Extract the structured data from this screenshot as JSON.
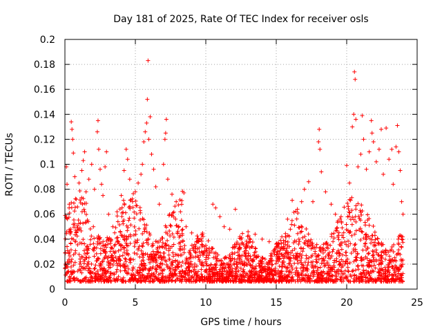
{
  "chart_data": {
    "type": "scatter",
    "title": "Day 181 of 2025, Rate Of TEC Index for receiver osls",
    "xlabel": "GPS time / hours",
    "ylabel": "ROTI / TECUs",
    "xlim": [
      0,
      25
    ],
    "ylim": [
      0,
      0.2
    ],
    "xticks": [
      0,
      5,
      10,
      15,
      20,
      25
    ],
    "xtick_labels": [
      "0",
      "5",
      "10",
      "15",
      "20",
      "25"
    ],
    "yticks": [
      0,
      0.02,
      0.04,
      0.06,
      0.08,
      0.1,
      0.12,
      0.14,
      0.16,
      0.18,
      0.2
    ],
    "ytick_labels": [
      "0",
      "0.02",
      "0.04",
      "0.06",
      "0.08",
      "0.1",
      "0.12",
      "0.14",
      "0.16",
      "0.18",
      "0.2"
    ],
    "grid": true,
    "marker": "plus",
    "color": "#ff0000",
    "series": [
      {
        "points": [
          [
            0.05,
            0.02
          ],
          [
            0.1,
            0.098
          ],
          [
            0.15,
            0.084
          ],
          [
            0.3,
            0.065
          ],
          [
            0.45,
            0.134
          ],
          [
            0.5,
            0.128
          ],
          [
            0.55,
            0.12
          ],
          [
            0.6,
            0.109
          ],
          [
            0.7,
            0.09
          ],
          [
            0.8,
            0.072
          ],
          [
            1.0,
            0.085
          ],
          [
            1.2,
            0.095
          ],
          [
            1.3,
            0.103
          ],
          [
            1.4,
            0.11
          ],
          [
            1.5,
            0.078
          ],
          [
            1.7,
            0.088
          ],
          [
            1.9,
            0.1
          ],
          [
            2.1,
            0.08
          ],
          [
            2.3,
            0.126
          ],
          [
            2.35,
            0.135
          ],
          [
            2.4,
            0.112
          ],
          [
            2.5,
            0.096
          ],
          [
            2.6,
            0.084
          ],
          [
            2.7,
            0.075
          ],
          [
            2.85,
            0.098
          ],
          [
            2.95,
            0.11
          ],
          [
            3.1,
            0.06
          ],
          [
            3.4,
            0.05
          ],
          [
            3.7,
            0.062
          ],
          [
            4.0,
            0.075
          ],
          [
            4.2,
            0.095
          ],
          [
            4.35,
            0.112
          ],
          [
            4.45,
            0.104
          ],
          [
            4.6,
            0.088
          ],
          [
            4.8,
            0.07
          ],
          [
            5.0,
            0.078
          ],
          [
            5.2,
            0.085
          ],
          [
            5.4,
            0.092
          ],
          [
            5.5,
            0.1
          ],
          [
            5.6,
            0.118
          ],
          [
            5.7,
            0.126
          ],
          [
            5.8,
            0.133
          ],
          [
            5.85,
            0.152
          ],
          [
            5.9,
            0.183
          ],
          [
            5.95,
            0.12
          ],
          [
            6.05,
            0.138
          ],
          [
            6.15,
            0.108
          ],
          [
            6.3,
            0.096
          ],
          [
            6.45,
            0.082
          ],
          [
            6.7,
            0.068
          ],
          [
            7.0,
            0.1
          ],
          [
            7.1,
            0.12
          ],
          [
            7.15,
            0.125
          ],
          [
            7.2,
            0.136
          ],
          [
            7.3,
            0.088
          ],
          [
            7.6,
            0.076
          ],
          [
            7.9,
            0.07
          ],
          [
            8.2,
            0.062
          ],
          [
            8.6,
            0.05
          ],
          [
            9.0,
            0.045
          ],
          [
            9.5,
            0.038
          ],
          [
            10.0,
            0.035
          ],
          [
            10.5,
            0.068
          ],
          [
            10.7,
            0.065
          ],
          [
            11.0,
            0.058
          ],
          [
            11.3,
            0.05
          ],
          [
            11.7,
            0.048
          ],
          [
            12.1,
            0.064
          ],
          [
            12.5,
            0.04
          ],
          [
            13.0,
            0.046
          ],
          [
            13.5,
            0.044
          ],
          [
            14.0,
            0.04
          ],
          [
            14.5,
            0.038
          ],
          [
            15.0,
            0.036
          ],
          [
            15.4,
            0.042
          ],
          [
            15.8,
            0.056
          ],
          [
            16.0,
            0.048
          ],
          [
            16.5,
            0.064
          ],
          [
            16.8,
            0.07
          ],
          [
            17.0,
            0.08
          ],
          [
            17.3,
            0.086
          ],
          [
            17.6,
            0.07
          ],
          [
            18.0,
            0.118
          ],
          [
            18.05,
            0.128
          ],
          [
            18.1,
            0.112
          ],
          [
            18.2,
            0.094
          ],
          [
            18.5,
            0.078
          ],
          [
            18.9,
            0.068
          ],
          [
            19.2,
            0.06
          ],
          [
            19.6,
            0.058
          ],
          [
            20.0,
            0.099
          ],
          [
            20.2,
            0.085
          ],
          [
            20.4,
            0.13
          ],
          [
            20.5,
            0.14
          ],
          [
            20.55,
            0.174
          ],
          [
            20.6,
            0.168
          ],
          [
            20.65,
            0.136
          ],
          [
            20.8,
            0.098
          ],
          [
            21.0,
            0.108
          ],
          [
            21.1,
            0.139
          ],
          [
            21.2,
            0.12
          ],
          [
            21.4,
            0.096
          ],
          [
            21.6,
            0.11
          ],
          [
            21.75,
            0.135
          ],
          [
            21.8,
            0.125
          ],
          [
            21.9,
            0.118
          ],
          [
            22.1,
            0.102
          ],
          [
            22.3,
            0.112
          ],
          [
            22.45,
            0.128
          ],
          [
            22.6,
            0.092
          ],
          [
            22.8,
            0.129
          ],
          [
            23.0,
            0.104
          ],
          [
            23.2,
            0.112
          ],
          [
            23.3,
            0.084
          ],
          [
            23.5,
            0.114
          ],
          [
            23.6,
            0.131
          ],
          [
            23.7,
            0.11
          ],
          [
            23.8,
            0.095
          ],
          [
            23.9,
            0.07
          ],
          [
            24.0,
            0.06
          ]
        ]
      }
    ]
  }
}
